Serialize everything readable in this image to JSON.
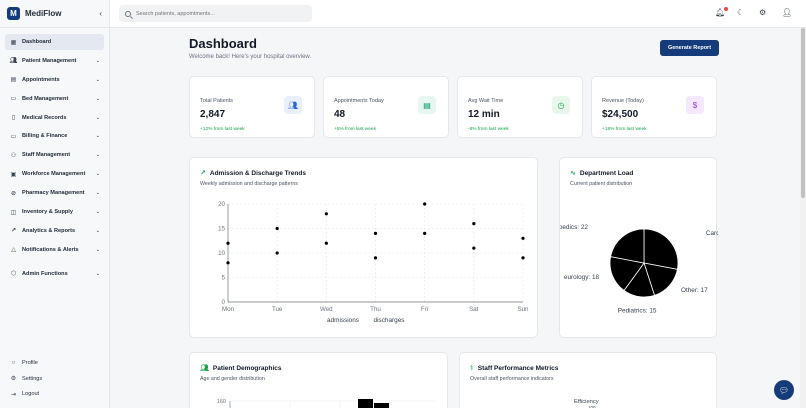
{
  "app": {
    "name": "MediFlow",
    "logo_letter": "M",
    "collapse_icon": "chevron-left-icon"
  },
  "sidebar": {
    "items": [
      {
        "label": "Dashboard",
        "icon": "grid-icon",
        "active": true,
        "has_chevron": false
      },
      {
        "label": "Patient Management",
        "icon": "users-icon",
        "has_chevron": true
      },
      {
        "label": "Appointments",
        "icon": "calendar-icon",
        "has_chevron": true
      },
      {
        "label": "Bed Management",
        "icon": "bed-icon",
        "has_chevron": true
      },
      {
        "label": "Medical Records",
        "icon": "file-icon",
        "has_chevron": true
      },
      {
        "label": "Billing & Finance",
        "icon": "credit-card-icon",
        "has_chevron": true
      },
      {
        "label": "Staff Management",
        "icon": "staff-icon",
        "has_chevron": true
      },
      {
        "label": "Workforce Management",
        "icon": "briefcase-icon",
        "has_chevron": true
      },
      {
        "label": "Pharmacy Management",
        "icon": "pill-icon",
        "has_chevron": true
      },
      {
        "label": "Inventory & Supply",
        "icon": "box-icon",
        "has_chevron": true
      },
      {
        "label": "Analytics & Reports",
        "icon": "chart-icon",
        "has_chevron": true
      },
      {
        "label": "Notifications & Alerts",
        "icon": "bell-icon",
        "has_chevron": true
      },
      {
        "label": "Admin Functions",
        "icon": "shield-icon",
        "has_chevron": true
      }
    ],
    "bottom": [
      {
        "label": "Profile",
        "icon": "user-icon"
      },
      {
        "label": "Settings",
        "icon": "gear-icon"
      },
      {
        "label": "Logout",
        "icon": "logout-icon"
      }
    ]
  },
  "search": {
    "placeholder": "Search patients, appointments..."
  },
  "header_icons": [
    "bell-icon",
    "moon-icon",
    "gear-icon",
    "user-icon"
  ],
  "page": {
    "title": "Dashboard",
    "subtitle": "Welcome back! Here's your hospital overview.",
    "report_button": "Generate Report"
  },
  "stats": [
    {
      "label": "Total Patients",
      "value": "2,847",
      "change": "+12% from last week",
      "icon": "users-icon",
      "icon_color": "#2563eb",
      "icon_bg": "#e8effd"
    },
    {
      "label": "Appointments Today",
      "value": "48",
      "change": "+5% from last week",
      "icon": "calendar-icon",
      "icon_color": "#059669",
      "icon_bg": "#e6f6f0"
    },
    {
      "label": "Avg Wait Time",
      "value": "12 min",
      "change": "-8% from last week",
      "icon": "clock-icon",
      "icon_color": "#16a34a",
      "icon_bg": "#e7f7ec"
    },
    {
      "label": "Revenue (Today)",
      "value": "$24,500",
      "change": "+18% from last week",
      "icon": "dollar-icon",
      "icon_color": "#9333ea",
      "icon_bg": "#f3e8ff"
    }
  ],
  "trends": {
    "title": "Admission & Discharge Trends",
    "subtitle": "Weekly admission and discharge patterns",
    "icon": "trending-up-icon"
  },
  "department": {
    "title": "Department Load",
    "subtitle": "Current patient distribution",
    "icon": "activity-icon"
  },
  "demographics": {
    "title": "Patient Demographics",
    "subtitle": "Age and gender distribution",
    "icon": "users-icon",
    "ytick_top": "160"
  },
  "staff_metrics": {
    "title": "Staff Performance Metrics",
    "subtitle": "Overall staff performance indicators",
    "icon": "stethoscope-icon",
    "axis_label": "Efficiency",
    "axis_value": "100"
  },
  "chart_data": [
    {
      "type": "scatter",
      "categories": [
        "Mon",
        "Tue",
        "Wed",
        "Thu",
        "Fri",
        "Sat",
        "Sun"
      ],
      "series": [
        {
          "name": "admissions",
          "values": [
            12,
            15,
            18,
            14,
            20,
            16,
            13
          ],
          "color": "#000000"
        },
        {
          "name": "discharges",
          "values": [
            8,
            10,
            12,
            9,
            14,
            11,
            9
          ],
          "color": "#000000"
        }
      ],
      "ylim": [
        0,
        20
      ],
      "yticks": [
        0,
        5,
        10,
        15,
        20
      ],
      "grid": true,
      "legend": "bottom"
    },
    {
      "type": "pie",
      "labels": [
        "Cardiology",
        "Other",
        "Pediatrics",
        "eurology",
        "thopedics"
      ],
      "values": [
        28,
        17,
        15,
        18,
        22
      ],
      "color": "#000000"
    }
  ]
}
